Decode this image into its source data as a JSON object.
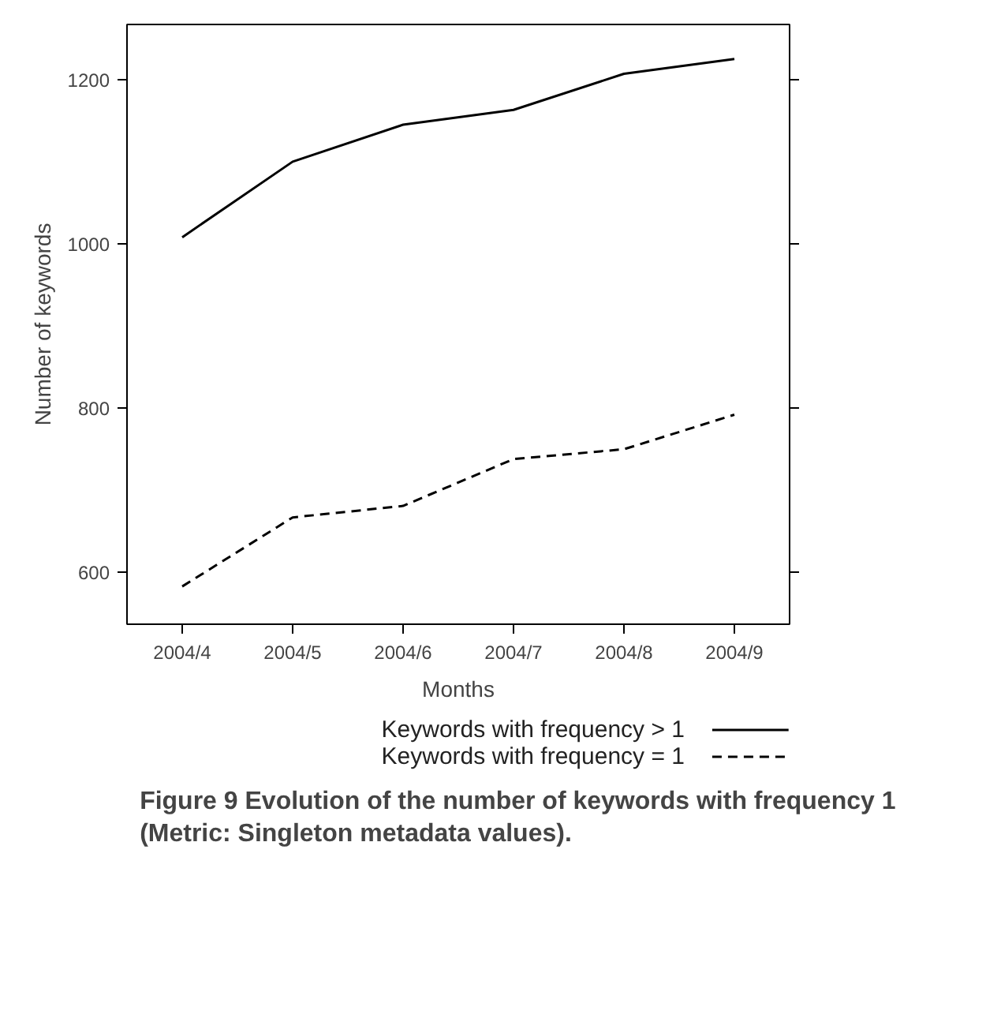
{
  "chart_data": {
    "type": "line",
    "xlabel": "Months",
    "ylabel": "Number of keywords",
    "categories": [
      "2004/4",
      "2004/5",
      "2004/6",
      "2004/7",
      "2004/8",
      "2004/9"
    ],
    "series": [
      {
        "name": "Keywords with frequency > 1",
        "color": "#000000",
        "line_style": "solid",
        "values": [
          1008,
          1100,
          1145,
          1163,
          1207,
          1225
        ]
      },
      {
        "name": "Keywords with frequency = 1",
        "color": "#000000",
        "line_style": "dashed",
        "values": [
          583,
          667,
          681,
          738,
          750,
          792
        ]
      }
    ],
    "ylim": [
      537,
      1267
    ],
    "yticks": [
      600,
      800,
      1000,
      1200
    ],
    "grid": false,
    "legend": "bottom",
    "marker": "none",
    "annotations": [
      "Figure 9 Evolution of the number of keywords with frequency 1 (Metric: Singleton metadata values)."
    ]
  }
}
